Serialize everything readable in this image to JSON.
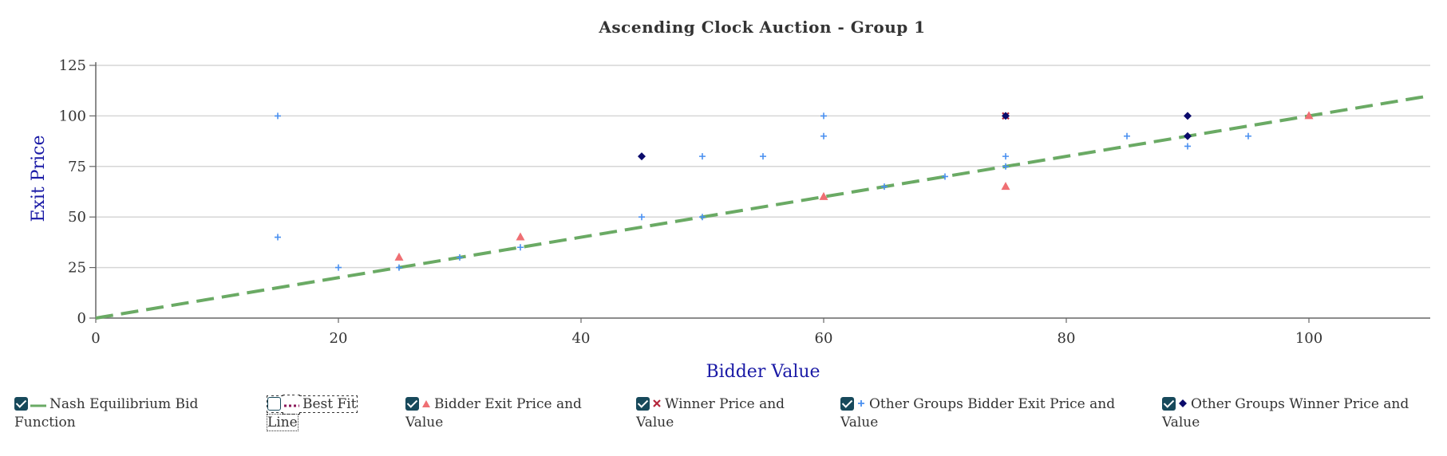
{
  "chart_data": {
    "type": "scatter",
    "title": "Ascending Clock Auction - Group 1",
    "xlabel": "Bidder Value",
    "ylabel": "Exit Price",
    "xlim": [
      0,
      110
    ],
    "ylim": [
      0,
      125
    ],
    "x_ticks": [
      0,
      20,
      40,
      60,
      80,
      100
    ],
    "y_ticks": [
      0,
      25,
      50,
      75,
      100,
      125
    ],
    "grid": "horizontal",
    "legend_position": "bottom",
    "series": [
      {
        "name": "Nash Equilibrium Bid Function",
        "kind": "dashed-line",
        "color": "#6aaa64",
        "points": [
          [
            0,
            0
          ],
          [
            110,
            110
          ]
        ],
        "visible": true
      },
      {
        "name": "Best Fit Line",
        "kind": "dotted-line",
        "color": "#8b1a5b",
        "points": [],
        "visible": false
      },
      {
        "name": "Bidder Exit Price and Value",
        "kind": "triangle",
        "color": "#ef6f73",
        "points": [
          [
            25,
            30
          ],
          [
            35,
            40
          ],
          [
            60,
            60
          ],
          [
            75,
            65
          ],
          [
            100,
            100
          ]
        ],
        "visible": true
      },
      {
        "name": "Winner Price and Value",
        "kind": "x",
        "color": "#b5263b",
        "points": [
          [
            75,
            100
          ]
        ],
        "visible": true
      },
      {
        "name": "Other Groups Bidder Exit Price and Value",
        "kind": "plus",
        "color": "#4a90f0",
        "points": [
          [
            15,
            100
          ],
          [
            15,
            40
          ],
          [
            20,
            25
          ],
          [
            25,
            25
          ],
          [
            30,
            30
          ],
          [
            35,
            35
          ],
          [
            45,
            50
          ],
          [
            50,
            50
          ],
          [
            50,
            80
          ],
          [
            55,
            80
          ],
          [
            60,
            100
          ],
          [
            60,
            90
          ],
          [
            65,
            65
          ],
          [
            70,
            70
          ],
          [
            75,
            80
          ],
          [
            75,
            75
          ],
          [
            85,
            90
          ],
          [
            90,
            85
          ],
          [
            95,
            90
          ]
        ],
        "visible": true
      },
      {
        "name": "Other Groups Winner Price and Value",
        "kind": "diamond",
        "color": "#0b0b6b",
        "points": [
          [
            45,
            80
          ],
          [
            75,
            100
          ],
          [
            90,
            100
          ],
          [
            90,
            90
          ]
        ],
        "visible": true
      }
    ]
  },
  "legend": [
    {
      "line1": "Nash Equilibrium Bid",
      "line2": "Function",
      "checked": true,
      "symbol": "dash-line"
    },
    {
      "line1": "Best Fit",
      "line2": "Line",
      "checked": false,
      "symbol": "dot-line"
    },
    {
      "line1": "Bidder Exit Price and",
      "line2": "Value",
      "checked": true,
      "symbol": "triangle"
    },
    {
      "line1": "Winner Price and",
      "line2": "Value",
      "checked": true,
      "symbol": "x"
    },
    {
      "line1": "Other Groups Bidder Exit Price and",
      "line2": "Value",
      "checked": true,
      "symbol": "plus"
    },
    {
      "line1": "Other Groups Winner Price and",
      "line2": "Value",
      "checked": true,
      "symbol": "diamond"
    }
  ],
  "colors": {
    "axis_label": "#1a1aa6",
    "title": "#333333",
    "grid": "#d6d6d6",
    "checkbox": "#17495b"
  }
}
